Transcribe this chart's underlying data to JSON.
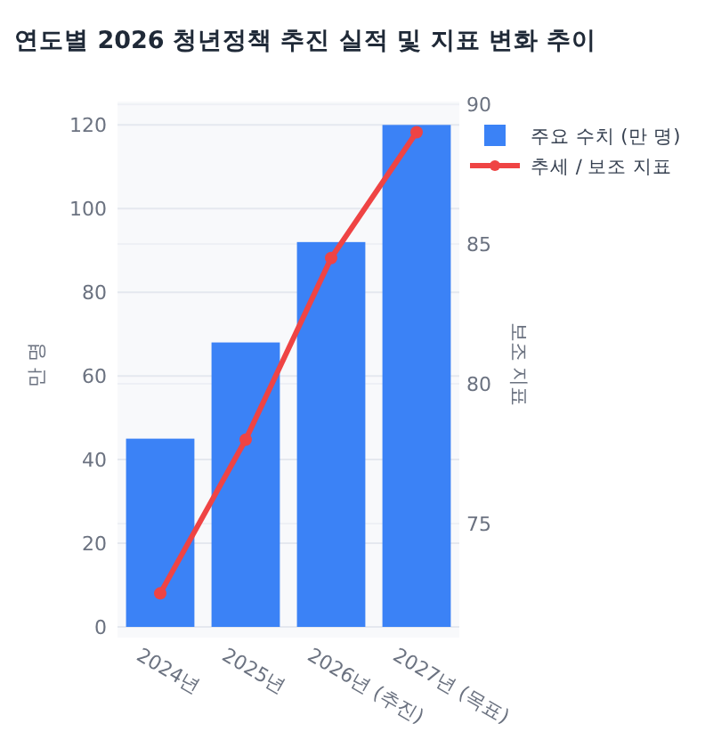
{
  "chart_data": {
    "type": "bar",
    "title": "연도별 2026 청년정책 추진 실적 및 지표 변화 추이",
    "ylabel": "만 명",
    "y2label": "보조 지표",
    "categories": [
      "2024년",
      "2025년",
      "2026년 (추진)",
      "2027년 (목표)"
    ],
    "series": [
      {
        "name": "주요 수치 (만 명)",
        "color": "#3b82f6",
        "values": [
          45,
          68,
          92,
          120
        ]
      },
      {
        "name": "추세 / 보조 지표",
        "type": "line",
        "axis": "y2",
        "color": "#ef4444",
        "marker": "circle",
        "values": [
          72.5,
          78,
          84.5,
          89
        ]
      }
    ],
    "ylim": [
      0,
      125.6
    ],
    "yticks": [
      0,
      20,
      40,
      60,
      80,
      100,
      120
    ],
    "y2lim": [
      71.3,
      90.1
    ],
    "y2ticks": [
      75,
      80,
      85,
      90
    ],
    "grid": true,
    "legend": "top right"
  }
}
